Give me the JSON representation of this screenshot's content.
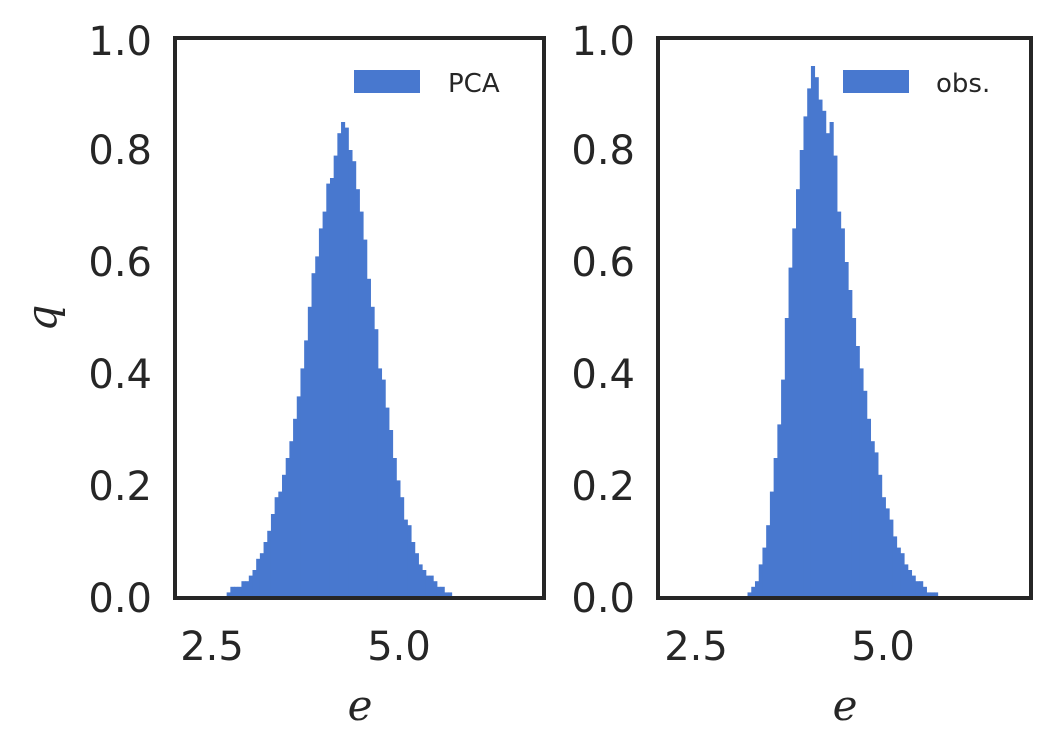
{
  "colors": {
    "bar": "#4878cf",
    "frame": "#262626",
    "text": "#262626"
  },
  "chart_data": [
    {
      "type": "bar",
      "subtype": "histogram",
      "ylabel": "q",
      "xlabel": "e",
      "xlim": [
        2.0,
        7.0
      ],
      "ylim": [
        0.0,
        1.0
      ],
      "xticks": [
        "2.5",
        "5.0"
      ],
      "yticks": [
        "0.0",
        "0.2",
        "0.4",
        "0.6",
        "0.8",
        "1.0"
      ],
      "grid": false,
      "legend": {
        "placement": "top-right",
        "entries": [
          "PCA"
        ]
      },
      "series": [
        {
          "name": "PCA",
          "bin_start": 2.7,
          "bin_width": 0.05,
          "values": [
            0.01,
            0.02,
            0.02,
            0.02,
            0.03,
            0.03,
            0.04,
            0.05,
            0.07,
            0.08,
            0.1,
            0.12,
            0.15,
            0.18,
            0.19,
            0.22,
            0.25,
            0.28,
            0.32,
            0.36,
            0.41,
            0.46,
            0.52,
            0.58,
            0.61,
            0.66,
            0.69,
            0.74,
            0.75,
            0.79,
            0.83,
            0.85,
            0.84,
            0.8,
            0.78,
            0.73,
            0.69,
            0.64,
            0.57,
            0.52,
            0.48,
            0.41,
            0.39,
            0.34,
            0.3,
            0.25,
            0.21,
            0.18,
            0.14,
            0.13,
            0.1,
            0.08,
            0.06,
            0.05,
            0.04,
            0.04,
            0.03,
            0.02,
            0.02,
            0.01,
            0.01
          ]
        }
      ]
    },
    {
      "type": "bar",
      "subtype": "histogram",
      "ylabel": "",
      "xlabel": "e",
      "xlim": [
        2.0,
        7.0
      ],
      "ylim": [
        0.0,
        1.0
      ],
      "xticks": [
        "2.5",
        "5.0"
      ],
      "yticks": [
        "0.0",
        "0.2",
        "0.4",
        "0.6",
        "0.8",
        "1.0"
      ],
      "grid": false,
      "legend": {
        "placement": "top-right",
        "entries": [
          "obs."
        ]
      },
      "series": [
        {
          "name": "obs.",
          "bin_start": 3.2,
          "bin_width": 0.05,
          "values": [
            0.01,
            0.02,
            0.03,
            0.06,
            0.09,
            0.13,
            0.19,
            0.25,
            0.31,
            0.39,
            0.5,
            0.59,
            0.66,
            0.73,
            0.8,
            0.86,
            0.91,
            0.95,
            0.93,
            0.89,
            0.87,
            0.83,
            0.85,
            0.79,
            0.69,
            0.66,
            0.6,
            0.55,
            0.5,
            0.45,
            0.41,
            0.37,
            0.32,
            0.28,
            0.26,
            0.22,
            0.18,
            0.16,
            0.14,
            0.11,
            0.09,
            0.08,
            0.06,
            0.05,
            0.04,
            0.03,
            0.03,
            0.02,
            0.01,
            0.01,
            0.01
          ]
        }
      ]
    }
  ]
}
